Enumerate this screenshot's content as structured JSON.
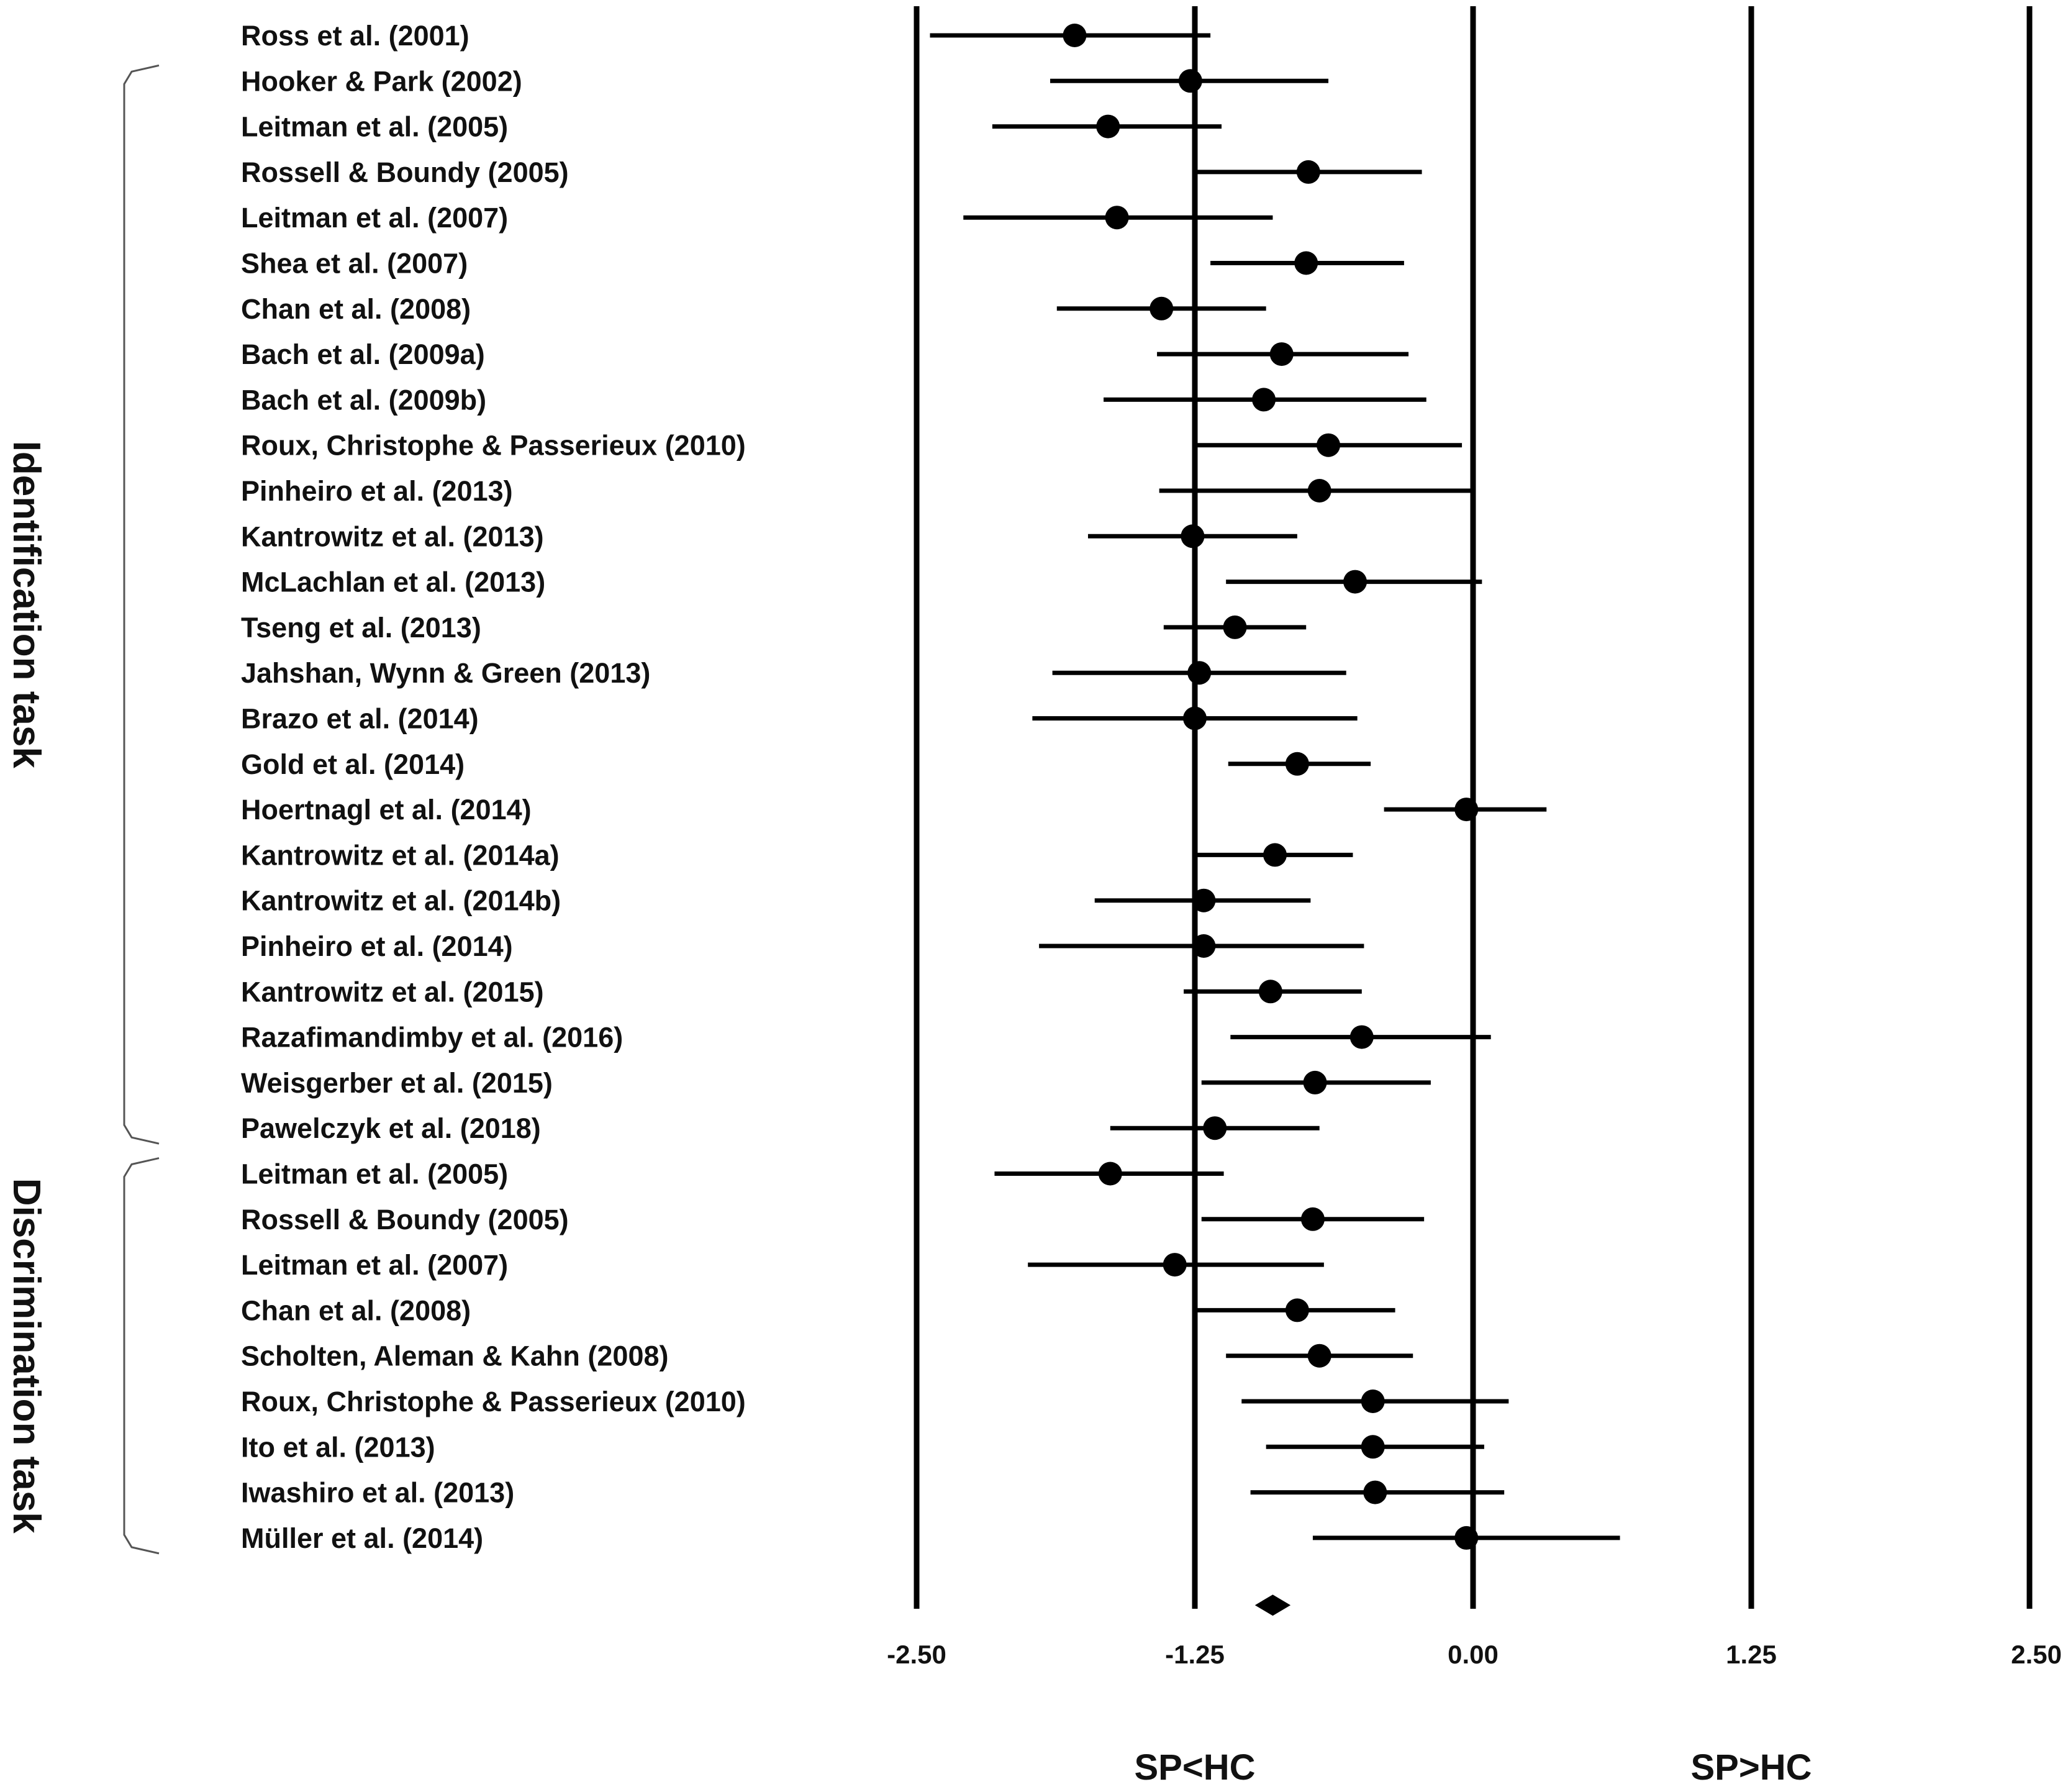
{
  "chart_data": {
    "type": "forest",
    "title": "",
    "xlim": [
      -2.5,
      2.5
    ],
    "xticks": [
      "-2.50",
      "-1.25",
      "0.00",
      "1.25",
      "2.50"
    ],
    "xtick_values": [
      -2.5,
      -1.25,
      0,
      1.25,
      2.5
    ],
    "direction_labels": [
      "SP<HC",
      "SP>HC"
    ],
    "groups": [
      {
        "label": "Identification task",
        "first": 1,
        "last": 24
      },
      {
        "label": "Discrimination task",
        "first": 25,
        "last": 33
      }
    ],
    "studies": [
      {
        "label": "Ross et al. (2001)",
        "est": -1.79,
        "lo": -2.44,
        "hi": -1.18
      },
      {
        "label": "Hooker & Park (2002)",
        "est": -1.27,
        "lo": -1.9,
        "hi": -0.65
      },
      {
        "label": "Leitman et al. (2005)",
        "est": -1.64,
        "lo": -2.16,
        "hi": -1.13
      },
      {
        "label": "Rossell & Boundy (2005)",
        "est": -0.74,
        "lo": -1.24,
        "hi": -0.23
      },
      {
        "label": "Leitman et al. (2007)",
        "est": -1.6,
        "lo": -2.29,
        "hi": -0.9
      },
      {
        "label": "Shea et al. (2007)",
        "est": -0.75,
        "lo": -1.18,
        "hi": -0.31
      },
      {
        "label": "Chan et al. (2008)",
        "est": -1.4,
        "lo": -1.87,
        "hi": -0.93
      },
      {
        "label": "Bach et al. (2009a)",
        "est": -0.86,
        "lo": -1.42,
        "hi": -0.29
      },
      {
        "label": "Bach et al. (2009b)",
        "est": -0.94,
        "lo": -1.66,
        "hi": -0.21
      },
      {
        "label": "Roux, Christophe & Passerieux (2010)",
        "est": -0.65,
        "lo": -1.26,
        "hi": -0.05
      },
      {
        "label": "Pinheiro et al.  (2013)",
        "est": -0.69,
        "lo": -1.41,
        "hi": 0.0
      },
      {
        "label": "Kantrowitz et al. (2013)",
        "est": -1.26,
        "lo": -1.73,
        "hi": -0.79
      },
      {
        "label": "McLachlan et al. (2013)",
        "est": -0.53,
        "lo": -1.11,
        "hi": 0.04
      },
      {
        "label": "Tseng et al. (2013)",
        "est": -1.07,
        "lo": -1.39,
        "hi": -0.75
      },
      {
        "label": "Jahshan, Wynn & Green (2013)",
        "est": -1.23,
        "lo": -1.89,
        "hi": -0.57
      },
      {
        "label": "Brazo et al. (2014)",
        "est": -1.25,
        "lo": -1.98,
        "hi": -0.52
      },
      {
        "label": "Gold et al. (2014)",
        "est": -0.79,
        "lo": -1.1,
        "hi": -0.46
      },
      {
        "label": "Hoertnagl et al. (2014)",
        "est": -0.03,
        "lo": -0.4,
        "hi": 0.33
      },
      {
        "label": "Kantrowitz et al. (2014a)",
        "est": -0.89,
        "lo": -1.24,
        "hi": -0.54
      },
      {
        "label": "Kantrowitz et al. (2014b)",
        "est": -1.21,
        "lo": -1.7,
        "hi": -0.73
      },
      {
        "label": "Pinheiro et al. (2014)",
        "est": -1.21,
        "lo": -1.95,
        "hi": -0.49
      },
      {
        "label": "Kantrowitz et al. (2015)",
        "est": -0.91,
        "lo": -1.3,
        "hi": -0.5
      },
      {
        "label": "Razafimandimby et al. (2016)",
        "est": -0.5,
        "lo": -1.09,
        "hi": 0.08
      },
      {
        "label": "Weisgerber et al. (2015)",
        "est": -0.71,
        "lo": -1.22,
        "hi": -0.19
      },
      {
        "label": "Pawelczyk et al. (2018)",
        "est": -1.16,
        "lo": -1.63,
        "hi": -0.69
      },
      {
        "label": "Leitman et al.  (2005)",
        "est": -1.63,
        "lo": -2.15,
        "hi": -1.12
      },
      {
        "label": "Rossell & Boundy  (2005)",
        "est": -0.72,
        "lo": -1.22,
        "hi": -0.22
      },
      {
        "label": "Leitman et al.  (2007)",
        "est": -1.34,
        "lo": -2.0,
        "hi": -0.67
      },
      {
        "label": "Chan et al.  (2008)",
        "est": -0.79,
        "lo": -1.24,
        "hi": -0.35
      },
      {
        "label": "Scholten, Aleman & Kahn  (2008)",
        "est": -0.69,
        "lo": -1.11,
        "hi": -0.27
      },
      {
        "label": "Roux, Christophe & Passerieux  (2010)",
        "est": -0.45,
        "lo": -1.04,
        "hi": 0.16
      },
      {
        "label": "Ito et al. (2013)",
        "est": -0.45,
        "lo": -0.93,
        "hi": 0.05
      },
      {
        "label": "Iwashiro et al. (2013)",
        "est": -0.44,
        "lo": -1.0,
        "hi": 0.14
      },
      {
        "label": "Müller et al. (2014)",
        "est": -0.03,
        "lo": -0.72,
        "hi": 0.66
      }
    ],
    "overall": {
      "est": -0.9,
      "lo": -0.98,
      "hi": -0.82
    }
  }
}
